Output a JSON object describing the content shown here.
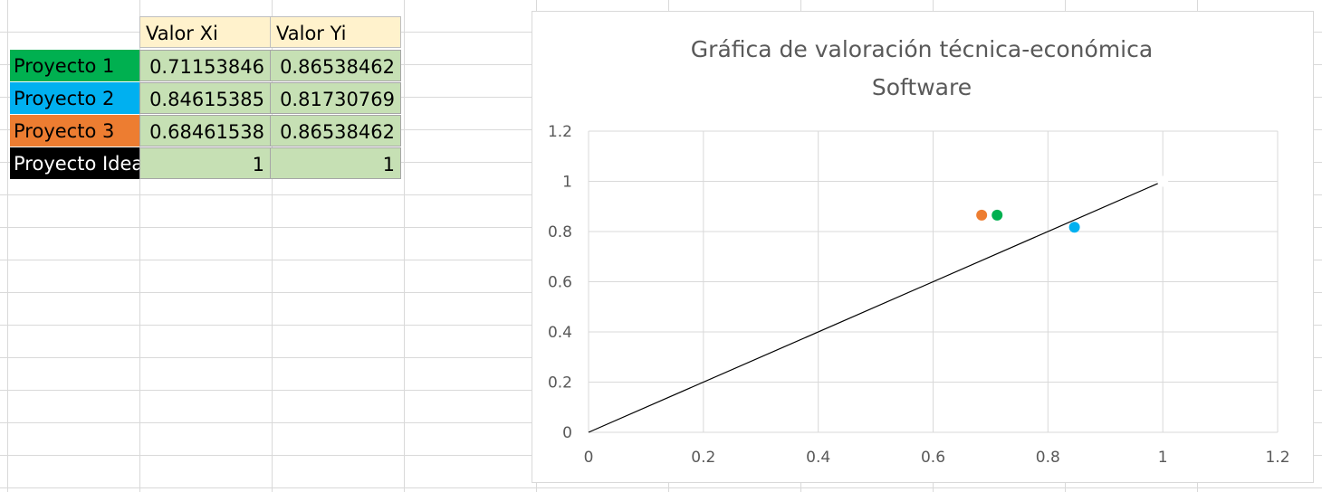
{
  "table": {
    "headers": [
      "Valor Xi",
      "Valor Yi"
    ],
    "rows": [
      {
        "label": "Proyecto 1",
        "x": "0.71153846",
        "y": "0.86538462",
        "color": "#00b050"
      },
      {
        "label": "Proyecto 2",
        "x": "0.84615385",
        "y": "0.81730769",
        "color": "#00b0f0"
      },
      {
        "label": "Proyecto 3",
        "x": "0.68461538",
        "y": "0.86538462",
        "color": "#ed7d31"
      },
      {
        "label": "Proyecto Ideal",
        "x": "1",
        "y": "1",
        "color": "#000000",
        "label_color": "#ffffff"
      }
    ]
  },
  "chart_data": {
    "type": "scatter",
    "title": "Gráfica de valoración técnica-económica",
    "subtitle": "Software",
    "xlim": [
      0,
      1.2
    ],
    "ylim": [
      0,
      1.2
    ],
    "x_ticks": [
      "0",
      "0.2",
      "0.4",
      "0.6",
      "0.8",
      "1",
      "1.2"
    ],
    "y_ticks": [
      "0",
      "0.2",
      "0.4",
      "0.6",
      "0.8",
      "1",
      "1.2"
    ],
    "grid": true,
    "series": [
      {
        "name": "Proyecto 1",
        "x": 0.71153846,
        "y": 0.86538462,
        "color": "#00b050"
      },
      {
        "name": "Proyecto 2",
        "x": 0.84615385,
        "y": 0.81730769,
        "color": "#00b0f0"
      },
      {
        "name": "Proyecto 3",
        "x": 0.68461538,
        "y": 0.86538462,
        "color": "#ed7d31"
      },
      {
        "name": "Proyecto Ideal",
        "x": 1,
        "y": 1,
        "color": "#ffffff"
      }
    ],
    "line": {
      "x": [
        0,
        1
      ],
      "y": [
        0,
        1
      ],
      "color": "#000000"
    }
  }
}
